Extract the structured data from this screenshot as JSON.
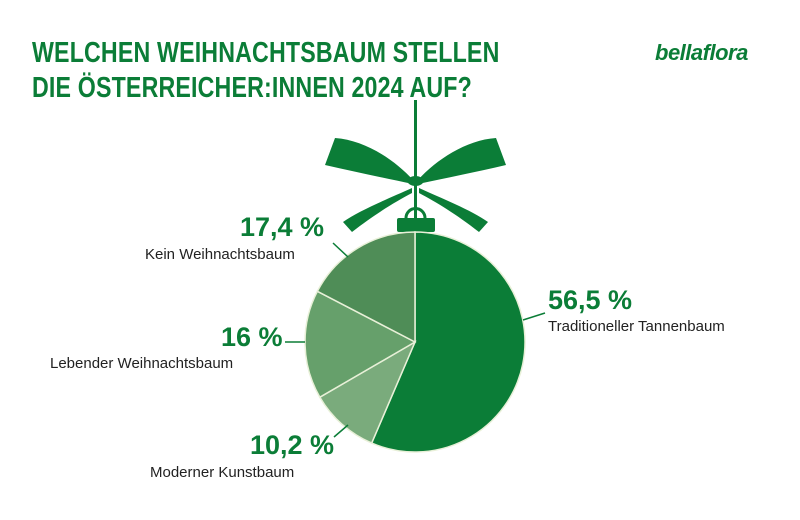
{
  "title": [
    "WELCHEN WEIHNACHTSBAUM STELLEN",
    "DIE ÖSTERREICHER:INNEN 2024 AUF?"
  ],
  "logo": "bellaflora",
  "chart_data": {
    "type": "pie",
    "title": "WELCHEN WEIHNACHTSBAUM STELLEN DIE ÖSTERREICHER:INNEN 2024 AUF?",
    "categories": [
      "Traditioneller Tannenbaum",
      "Moderner Kunstbaum",
      "Lebender Weihnachtsbaum",
      "Kein Weihnachtsbaum"
    ],
    "values": [
      56.5,
      10.2,
      16,
      17.4
    ],
    "value_labels": [
      "56,5 %",
      "10,2 %",
      "16 %",
      "17,4 %"
    ],
    "colors": [
      "#0b7d37",
      "#7aab7c",
      "#66a06b",
      "#4f8d57"
    ],
    "start": "top, clockwise"
  },
  "accent_color": "#0b7d37"
}
